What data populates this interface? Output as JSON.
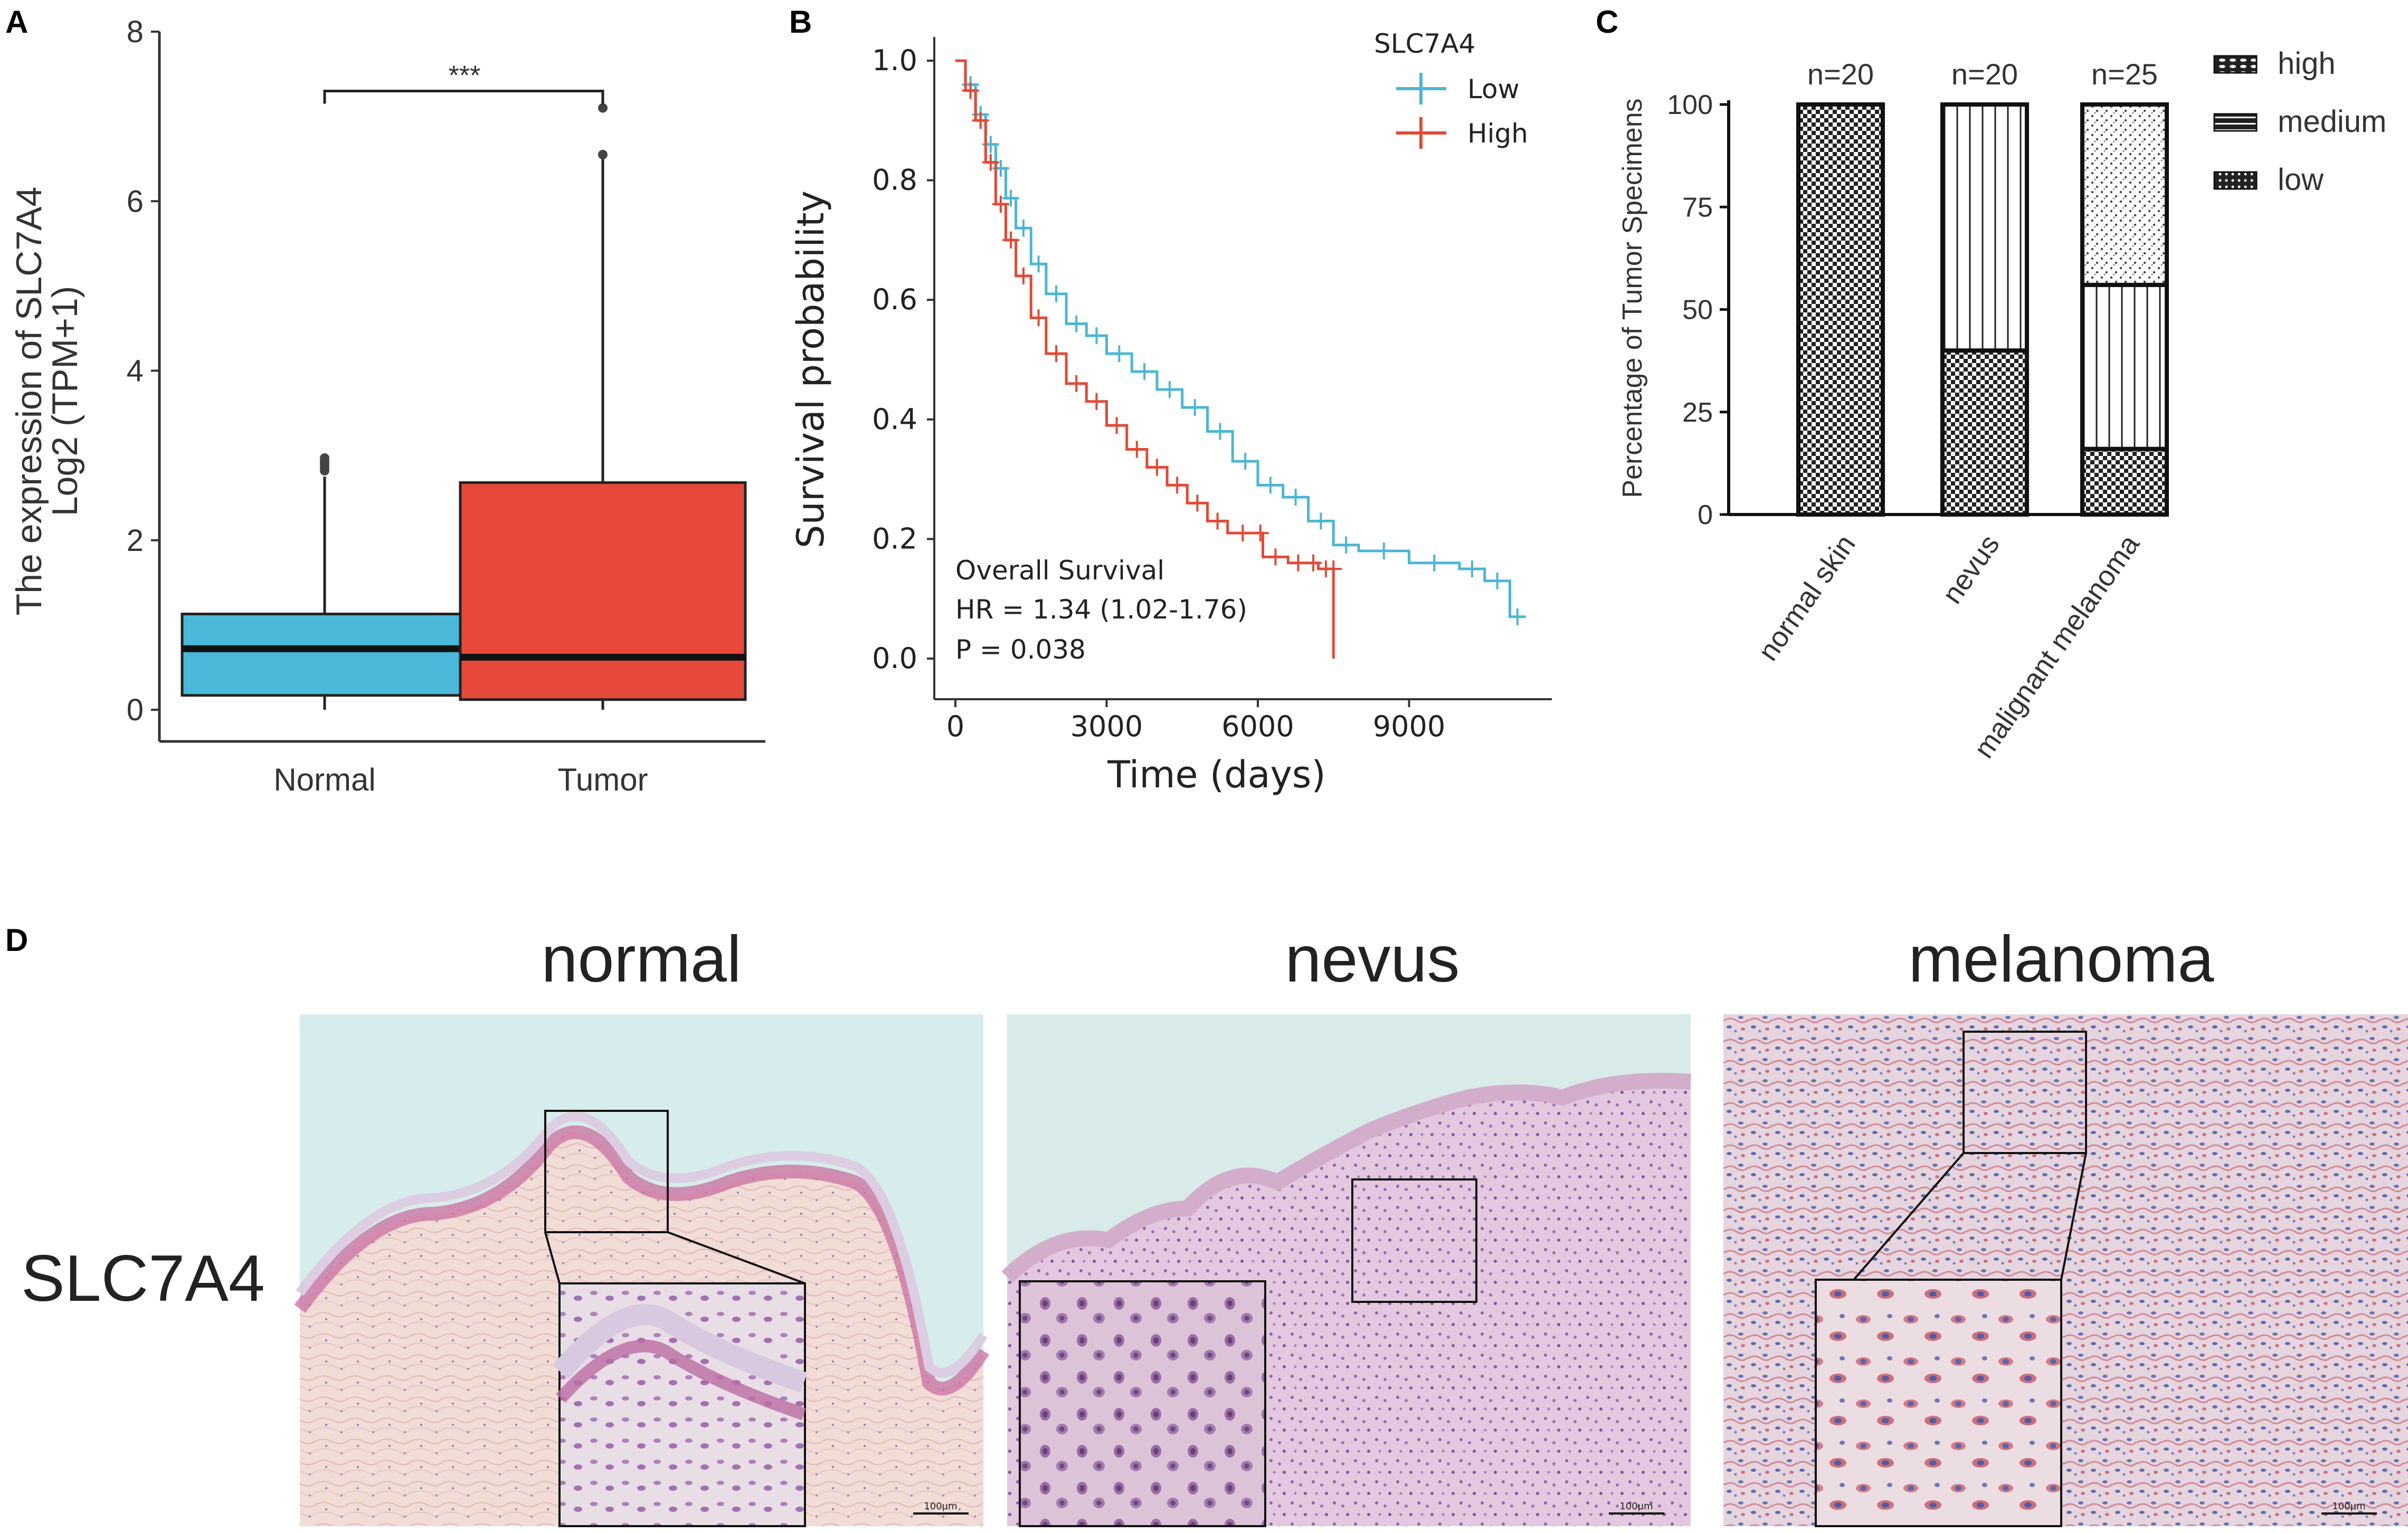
{
  "colors": {
    "normal_box": "#4ab8d8",
    "tumor_box": "#e6493a",
    "low_line": "#4bb6d2",
    "high_line": "#e04a36"
  },
  "panel_labels": [
    "A",
    "B",
    "C",
    "D"
  ],
  "chart_data": [
    {
      "id": "A",
      "type": "box",
      "categories": [
        "Normal",
        "Tumor"
      ],
      "ylabel_line1": "The expression of SLC7A4",
      "ylabel_line2": "Log2 (TPM+1)",
      "ylim": [
        0,
        8
      ],
      "yticks": [
        "0",
        "2",
        "4",
        "6",
        "8"
      ],
      "significance": "***",
      "boxes": [
        {
          "name": "Normal",
          "min": 0.0,
          "q1": 0.17,
          "median": 0.72,
          "q3": 1.13,
          "max": 2.75,
          "outliers": [
            2.82,
            2.9,
            2.97,
            2.93,
            2.86
          ]
        },
        {
          "name": "Tumor",
          "min": 0.0,
          "q1": 0.12,
          "median": 0.62,
          "q3": 2.68,
          "max": 6.5,
          "outliers": [
            6.55,
            7.1
          ]
        }
      ]
    },
    {
      "id": "B",
      "type": "line",
      "title": "Overall Survival",
      "xlabel": "Time (days)",
      "ylabel": "Survival probability",
      "xlim": [
        0,
        11500
      ],
      "ylim": [
        0,
        1.0
      ],
      "xticks": [
        "0",
        "3000",
        "6000",
        "9000"
      ],
      "yticks": [
        "0.0",
        "0.2",
        "0.4",
        "0.6",
        "0.8",
        "1.0"
      ],
      "legend_title": "SLC7A4",
      "annotation_hr": "HR = 1.34 (1.02-1.76)",
      "annotation_p": "P = 0.038",
      "series": [
        {
          "name": "Low",
          "x": [
            0,
            200,
            400,
            600,
            800,
            1000,
            1200,
            1500,
            1800,
            2200,
            2600,
            3000,
            3500,
            4000,
            4500,
            5000,
            5500,
            6000,
            6500,
            7000,
            7500,
            8000,
            9000,
            10000,
            10500,
            11000,
            11300
          ],
          "y": [
            1.0,
            0.96,
            0.91,
            0.86,
            0.82,
            0.77,
            0.72,
            0.66,
            0.61,
            0.56,
            0.54,
            0.51,
            0.48,
            0.45,
            0.42,
            0.38,
            0.33,
            0.29,
            0.27,
            0.23,
            0.19,
            0.18,
            0.16,
            0.15,
            0.13,
            0.07,
            0.07
          ]
        },
        {
          "name": "High",
          "x": [
            0,
            200,
            400,
            600,
            800,
            1000,
            1200,
            1500,
            1800,
            2200,
            2600,
            3000,
            3400,
            3800,
            4200,
            4600,
            5000,
            5400,
            6000,
            6100,
            6600,
            7000,
            7200,
            7500,
            7500
          ],
          "y": [
            1.0,
            0.95,
            0.9,
            0.83,
            0.76,
            0.7,
            0.64,
            0.57,
            0.51,
            0.46,
            0.43,
            0.39,
            0.35,
            0.32,
            0.29,
            0.26,
            0.23,
            0.21,
            0.21,
            0.17,
            0.16,
            0.16,
            0.15,
            0.15,
            0.0
          ]
        }
      ]
    },
    {
      "id": "C",
      "type": "bar",
      "stacked": true,
      "ylabel": "Percentage of Tumor Specimens",
      "ylim": [
        0,
        100
      ],
      "yticks": [
        "0",
        "25",
        "50",
        "75",
        "100"
      ],
      "categories": [
        "normal skin",
        "nevus",
        "malignant melanoma"
      ],
      "n_labels": [
        "n=20",
        "n=20",
        "n=25"
      ],
      "series": [
        {
          "name": "low",
          "values": [
            100,
            40,
            16
          ]
        },
        {
          "name": "medium",
          "values": [
            0,
            60,
            40
          ]
        },
        {
          "name": "high",
          "values": [
            0,
            0,
            44
          ]
        }
      ],
      "legend": [
        "high",
        "medium",
        "low"
      ]
    }
  ],
  "histology": {
    "row_label": "SLC7A4",
    "titles": [
      "normal",
      "nevus",
      "melanoma"
    ],
    "scale_bar": "100µm"
  }
}
